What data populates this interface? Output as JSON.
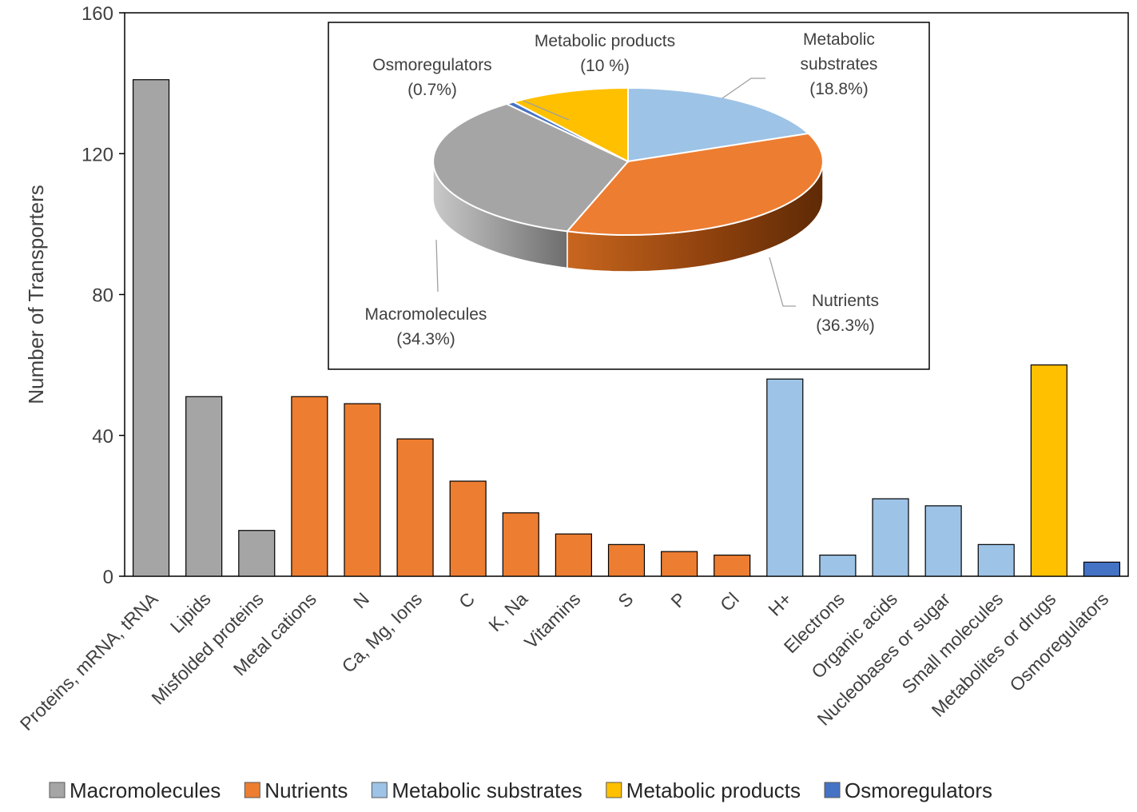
{
  "chart_data": [
    {
      "type": "bar",
      "title": "",
      "xlabel": "",
      "ylabel": "Number  of Transporters",
      "ylim": [
        0,
        160
      ],
      "yticks": [
        0,
        40,
        80,
        120,
        160
      ],
      "grid": false,
      "categories": [
        "Proteins, mRNA, tRNA",
        "Lipids",
        "Misfolded proteins",
        "Metal cations",
        "N",
        "Ca, Mg, Ions",
        "C",
        "K, Na",
        "Vitamins",
        "S",
        "P",
        "Cl",
        "H+",
        "Electrons",
        "Organic acids",
        "Nucleobases or sugar",
        "Small molecules",
        "Metabolites or drugs",
        "Osmoregulators"
      ],
      "values": [
        141,
        51,
        13,
        51,
        49,
        39,
        27,
        18,
        12,
        9,
        7,
        6,
        56,
        6,
        22,
        20,
        9,
        60,
        4
      ],
      "groups": [
        "Macromolecules",
        "Macromolecules",
        "Macromolecules",
        "Nutrients",
        "Nutrients",
        "Nutrients",
        "Nutrients",
        "Nutrients",
        "Nutrients",
        "Nutrients",
        "Nutrients",
        "Nutrients",
        "Metabolic substrates",
        "Metabolic substrates",
        "Metabolic substrates",
        "Metabolic substrates",
        "Metabolic substrates",
        "Metabolic products",
        "Osmoregulators"
      ],
      "legend": {
        "placement": "bottom",
        "entries": [
          {
            "label": "Macromolecules",
            "color": "#a5a5a5"
          },
          {
            "label": "Nutrients",
            "color": "#ed7d31"
          },
          {
            "label": "Metabolic substrates",
            "color": "#9dc3e6"
          },
          {
            "label": "Metabolic products",
            "color": "#ffc000"
          },
          {
            "label": "Osmoregulators",
            "color": "#4472c4"
          }
        ]
      }
    },
    {
      "type": "pie",
      "title": "",
      "placement": "inset top-center",
      "slices": [
        {
          "label": "Metabolic substrates",
          "label_lines": [
            "Metabolic",
            "substrates"
          ],
          "pct_text": "(18.8%)",
          "value": 18.8,
          "color": "#9dc3e6",
          "side": "#6f93b8"
        },
        {
          "label": "Nutrients",
          "label_lines": [
            "Nutrients"
          ],
          "pct_text": "(36.3%)",
          "value": 36.3,
          "color": "#ed7d31",
          "side": "#b85a16"
        },
        {
          "label": "Macromolecules",
          "label_lines": [
            "Macromolecules"
          ],
          "pct_text": "(34.3%)",
          "value": 34.3,
          "color": "#a5a5a5",
          "side": "#7f7f7f"
        },
        {
          "label": "Osmoregulators",
          "label_lines": [
            "Osmoregulators"
          ],
          "pct_text": "(0.7%)",
          "value": 0.7,
          "color": "#4472c4",
          "side": "#2f528f"
        },
        {
          "label": "Metabolic products",
          "label_lines": [
            "Metabolic products"
          ],
          "pct_text": "(10 %)",
          "value": 10,
          "color": "#ffc000",
          "side": "#bf9000"
        }
      ]
    }
  ]
}
